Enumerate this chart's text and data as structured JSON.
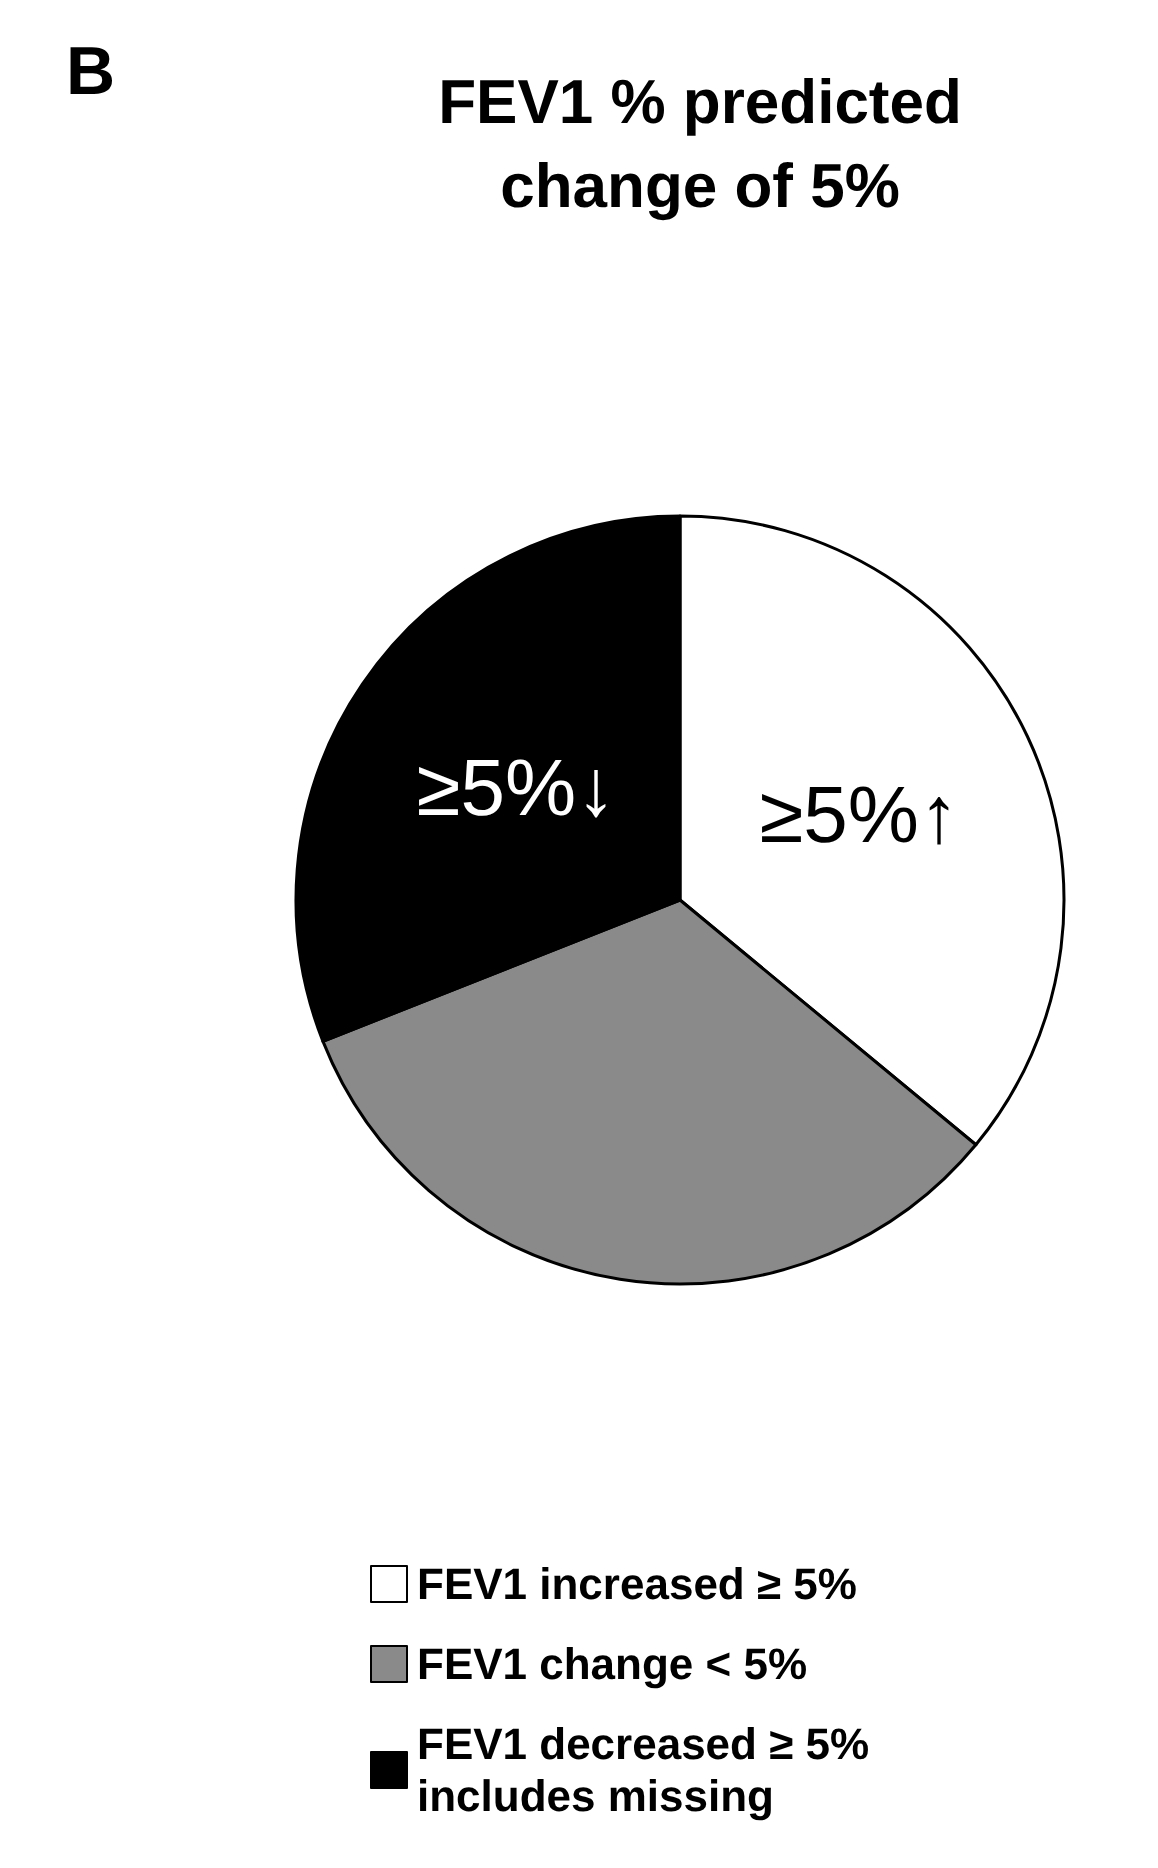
{
  "chart_data": {
    "type": "pie",
    "title": "FEV1 % predicted\nchange of 5%",
    "categories": [
      "FEV1 increased ≥ 5%",
      "FEV1 change < 5%",
      "FEV1 decreased ≥ 5%\nincludes missing"
    ],
    "values": [
      36,
      33,
      31
    ],
    "colors": [
      "#ffffff",
      "#8a8a8a",
      "#000000"
    ],
    "value_labels": [
      "≥5%↑",
      null,
      "≥5%↓"
    ],
    "legend": "bottom",
    "annotations": [
      "B"
    ]
  }
}
